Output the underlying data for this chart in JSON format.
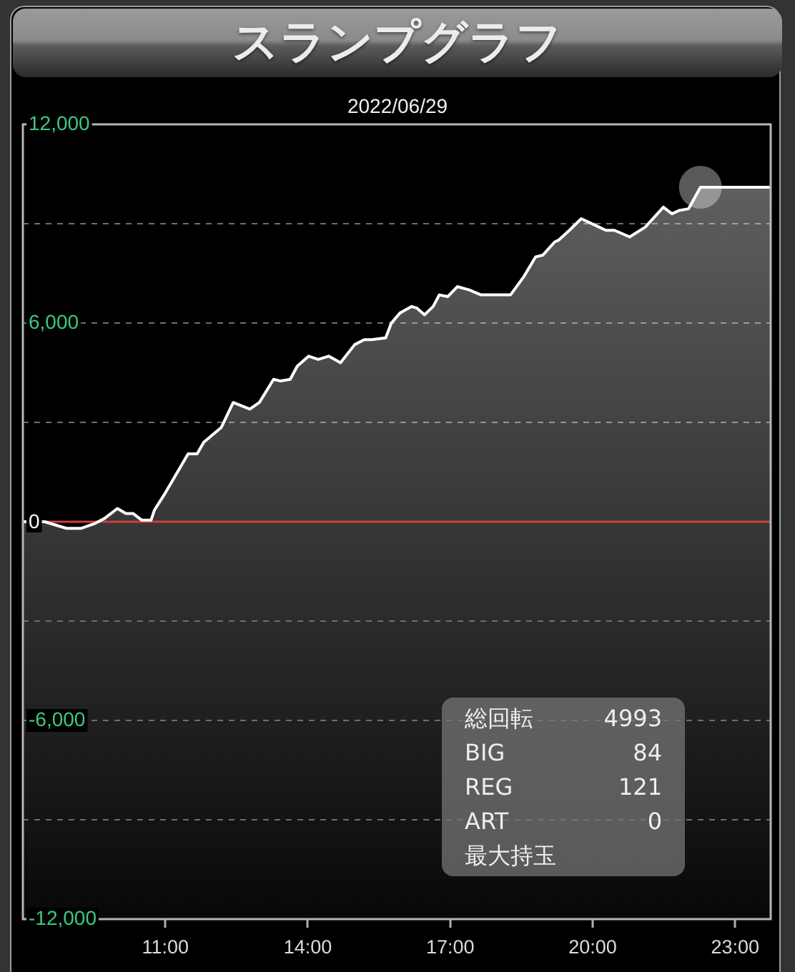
{
  "chart_data": {
    "type": "area",
    "title": "スランプグラフ",
    "subtitle": "2022/06/29",
    "x": [
      8,
      8.46,
      8.92,
      9.22,
      9.52,
      9.72,
      9.99,
      10.17,
      10.32,
      10.5,
      10.7,
      10.77,
      10.97,
      11.48,
      11.67,
      11.81,
      12.18,
      12.43,
      12.78,
      12.98,
      13.28,
      13.43,
      13.63,
      13.78,
      14.02,
      14.22,
      14.44,
      14.69,
      14.99,
      15.19,
      15.34,
      15.64,
      15.76,
      15.94,
      16.19,
      16.3,
      16.46,
      16.64,
      16.77,
      16.95,
      17.15,
      17.4,
      17.65,
      18.27,
      18.55,
      18.8,
      18.95,
      19.2,
      19.28,
      19.51,
      19.76,
      20.06,
      20.28,
      20.46,
      20.78,
      21.11,
      21.49,
      21.67,
      21.82,
      22.02,
      22.27,
      23.75
    ],
    "series": [
      {
        "color": "#ffffff",
        "values": [
          0,
          0,
          -200,
          -200,
          -50,
          100,
          400,
          250,
          250,
          50,
          50,
          350,
          800,
          2050,
          2050,
          2400,
          2850,
          3600,
          3400,
          3600,
          4300,
          4250,
          4300,
          4700,
          5000,
          4900,
          5000,
          4800,
          5350,
          5500,
          5500,
          5550,
          6000,
          6300,
          6500,
          6450,
          6250,
          6500,
          6850,
          6800,
          7100,
          7000,
          6850,
          6850,
          7400,
          8000,
          8050,
          8450,
          8500,
          8800,
          9150,
          8950,
          8800,
          8800,
          8600,
          8900,
          9500,
          9300,
          9400,
          9450,
          10100,
          10100
        ]
      },
      {
        "type": "scatter",
        "color": "#888888",
        "x": [
          22.27
        ],
        "values": [
          10100
        ]
      }
    ],
    "xlim": [
      8,
      23.75
    ],
    "xticks": [
      {
        "value": 11,
        "label": "11:00"
      },
      {
        "value": 14,
        "label": "14:00"
      },
      {
        "value": 17,
        "label": "17:00"
      },
      {
        "value": 20,
        "label": "20:00"
      },
      {
        "value": 23,
        "label": "23:00"
      }
    ],
    "ylim": [
      -12000,
      12000
    ],
    "yticks": [
      {
        "value": -12000,
        "label": "-12,000"
      },
      {
        "value": -9000,
        "label": null
      },
      {
        "value": -6000,
        "label": "-6,000"
      },
      {
        "value": -3000,
        "label": null
      },
      0,
      {
        "value": 3000,
        "label": null
      },
      {
        "value": 6000,
        "label": "6,000"
      },
      {
        "value": 9000,
        "label": null
      },
      {
        "value": 12000,
        "label": "12,000"
      }
    ],
    "grid": "y",
    "ref_lines": [
      {
        "axis": "y",
        "value": 0,
        "color": "#d23c3c"
      }
    ],
    "annotations": [
      "総回転",
      "4993",
      "BIG",
      "84",
      "REG",
      "121",
      "ART",
      "0",
      "最大持玉"
    ]
  }
}
